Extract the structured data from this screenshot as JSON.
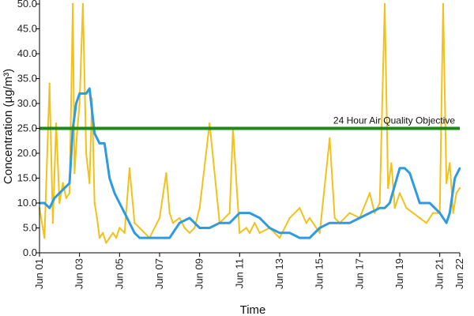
{
  "chart_data": {
    "type": "line",
    "title": "",
    "xlabel": "Time",
    "ylabel": "Concentration (µg/m³)",
    "ylim": [
      0,
      50
    ],
    "xlim": [
      "2017-06-01",
      "2017-06-22"
    ],
    "grid": false,
    "legend": "none",
    "y_ticks": [
      "0.0",
      "5.0",
      "10.0",
      "15.0",
      "20.0",
      "25.0",
      "30.0",
      "35.0",
      "40.0",
      "45.0",
      "50.0"
    ],
    "y_tick_values": [
      0,
      5,
      10,
      15,
      20,
      25,
      30,
      35,
      40,
      45,
      50
    ],
    "x_ticks": [
      "Jun 01",
      "Jun 03",
      "Jun 05",
      "Jun 07",
      "Jun 09",
      "Jun 11",
      "Jun 13",
      "Jun 15",
      "Jun 17",
      "Jun 19",
      "Jun 21",
      "Jun 22"
    ],
    "x_tick_dates": [
      "2017-06-01",
      "2017-06-03",
      "2017-06-05",
      "2017-06-07",
      "2017-06-09",
      "2017-06-11",
      "2017-06-13",
      "2017-06-15",
      "2017-06-17",
      "2017-06-19",
      "2017-06-21",
      "2017-06-22"
    ],
    "objective": {
      "label": "24 Hour Air Quality Objective",
      "value": 25
    },
    "colors": {
      "hourly": "#f2c21b",
      "average": "#2e9be0",
      "objective": "#1b8a1b"
    },
    "series": [
      {
        "color": "#f2c21b",
        "x": [
          "2017-06-01T00:00",
          "2017-06-01T06:00",
          "2017-06-01T12:00",
          "2017-06-01T16:00",
          "2017-06-01T20:00",
          "2017-06-02T00:00",
          "2017-06-02T04:00",
          "2017-06-02T08:00",
          "2017-06-02T12:00",
          "2017-06-02T16:00",
          "2017-06-02T18:00",
          "2017-06-02T21:00",
          "2017-06-03T00:00",
          "2017-06-03T04:00",
          "2017-06-03T08:00",
          "2017-06-03T12:00",
          "2017-06-03T15:00",
          "2017-06-03T18:00",
          "2017-06-03T21:00",
          "2017-06-04T00:00",
          "2017-06-04T04:00",
          "2017-06-04T08:00",
          "2017-06-04T12:00",
          "2017-06-04T16:00",
          "2017-06-04T20:00",
          "2017-06-05T00:00",
          "2017-06-05T06:00",
          "2017-06-05T12:00",
          "2017-06-05T18:00",
          "2017-06-06T00:00",
          "2017-06-06T12:00",
          "2017-06-07T00:00",
          "2017-06-07T08:00",
          "2017-06-07T12:00",
          "2017-06-07T16:00",
          "2017-06-08T00:00",
          "2017-06-08T06:00",
          "2017-06-08T12:00",
          "2017-06-08T18:00",
          "2017-06-09T00:00",
          "2017-06-09T12:00",
          "2017-06-10T00:00",
          "2017-06-10T12:00",
          "2017-06-10T16:00",
          "2017-06-11T00:00",
          "2017-06-11T08:00",
          "2017-06-11T12:00",
          "2017-06-11T18:00",
          "2017-06-12T00:00",
          "2017-06-12T12:00",
          "2017-06-13T00:00",
          "2017-06-13T12:00",
          "2017-06-14T00:00",
          "2017-06-14T08:00",
          "2017-06-14T12:00",
          "2017-06-15T00:00",
          "2017-06-15T12:00",
          "2017-06-15T18:00",
          "2017-06-16T00:00",
          "2017-06-16T12:00",
          "2017-06-17T00:00",
          "2017-06-17T12:00",
          "2017-06-17T18:00",
          "2017-06-18T00:00",
          "2017-06-18T06:00",
          "2017-06-18T10:00",
          "2017-06-18T14:00",
          "2017-06-18T18:00",
          "2017-06-19T00:00",
          "2017-06-19T08:00",
          "2017-06-19T16:00",
          "2017-06-20T00:00",
          "2017-06-20T08:00",
          "2017-06-20T16:00",
          "2017-06-21T00:00",
          "2017-06-21T04:00",
          "2017-06-21T08:00",
          "2017-06-21T12:00",
          "2017-06-21T16:00",
          "2017-06-21T20:00",
          "2017-06-22T00:00"
        ],
        "values": [
          9,
          3,
          34,
          6,
          26,
          10,
          14,
          11,
          12,
          50,
          16,
          24,
          30,
          50,
          20,
          14,
          31,
          10,
          7,
          3,
          4,
          2,
          3,
          4,
          3,
          5,
          4,
          17,
          6,
          5,
          3,
          7,
          16,
          8,
          6,
          7,
          5,
          4,
          5,
          9,
          26,
          6,
          8,
          25,
          4,
          5,
          4,
          6,
          4,
          5,
          3,
          7,
          9,
          6,
          7,
          4,
          23,
          7,
          6,
          8,
          7,
          12,
          8,
          10,
          50,
          13,
          18,
          9,
          12,
          9,
          8,
          7,
          6,
          8,
          8,
          50,
          14,
          18,
          8,
          12,
          13
        ]
      },
      {
        "color": "#2e9be0",
        "x": [
          "2017-06-01T00:00",
          "2017-06-01T06:00",
          "2017-06-01T12:00",
          "2017-06-01T18:00",
          "2017-06-02T00:00",
          "2017-06-02T06:00",
          "2017-06-02T12:00",
          "2017-06-02T16:00",
          "2017-06-02T20:00",
          "2017-06-03T00:00",
          "2017-06-03T08:00",
          "2017-06-03T12:00",
          "2017-06-03T18:00",
          "2017-06-04T00:00",
          "2017-06-04T06:00",
          "2017-06-04T12:00",
          "2017-06-04T18:00",
          "2017-06-05T00:00",
          "2017-06-05T06:00",
          "2017-06-05T12:00",
          "2017-06-05T18:00",
          "2017-06-06T00:00",
          "2017-06-06T12:00",
          "2017-06-07T00:00",
          "2017-06-07T12:00",
          "2017-06-08T00:00",
          "2017-06-08T12:00",
          "2017-06-09T00:00",
          "2017-06-09T12:00",
          "2017-06-10T00:00",
          "2017-06-10T12:00",
          "2017-06-11T00:00",
          "2017-06-11T12:00",
          "2017-06-12T00:00",
          "2017-06-12T12:00",
          "2017-06-13T00:00",
          "2017-06-13T12:00",
          "2017-06-14T00:00",
          "2017-06-14T12:00",
          "2017-06-15T00:00",
          "2017-06-15T12:00",
          "2017-06-16T00:00",
          "2017-06-16T12:00",
          "2017-06-17T00:00",
          "2017-06-17T12:00",
          "2017-06-18T00:00",
          "2017-06-18T06:00",
          "2017-06-18T12:00",
          "2017-06-19T00:00",
          "2017-06-19T06:00",
          "2017-06-19T12:00",
          "2017-06-20T00:00",
          "2017-06-20T12:00",
          "2017-06-21T00:00",
          "2017-06-21T08:00",
          "2017-06-21T12:00",
          "2017-06-21T18:00",
          "2017-06-22T00:00"
        ],
        "values": [
          10,
          10,
          9,
          11,
          12,
          13,
          14,
          25,
          30,
          32,
          32,
          33,
          24,
          22,
          22,
          15,
          12,
          10,
          8,
          6,
          4,
          3,
          3,
          3,
          3,
          6,
          7,
          5,
          5,
          6,
          6,
          8,
          8,
          7,
          5,
          4,
          4,
          3,
          3,
          5,
          6,
          6,
          6,
          7,
          8,
          9,
          9,
          10,
          17,
          17,
          16,
          10,
          10,
          8,
          6,
          8,
          15,
          17
        ]
      }
    ]
  }
}
